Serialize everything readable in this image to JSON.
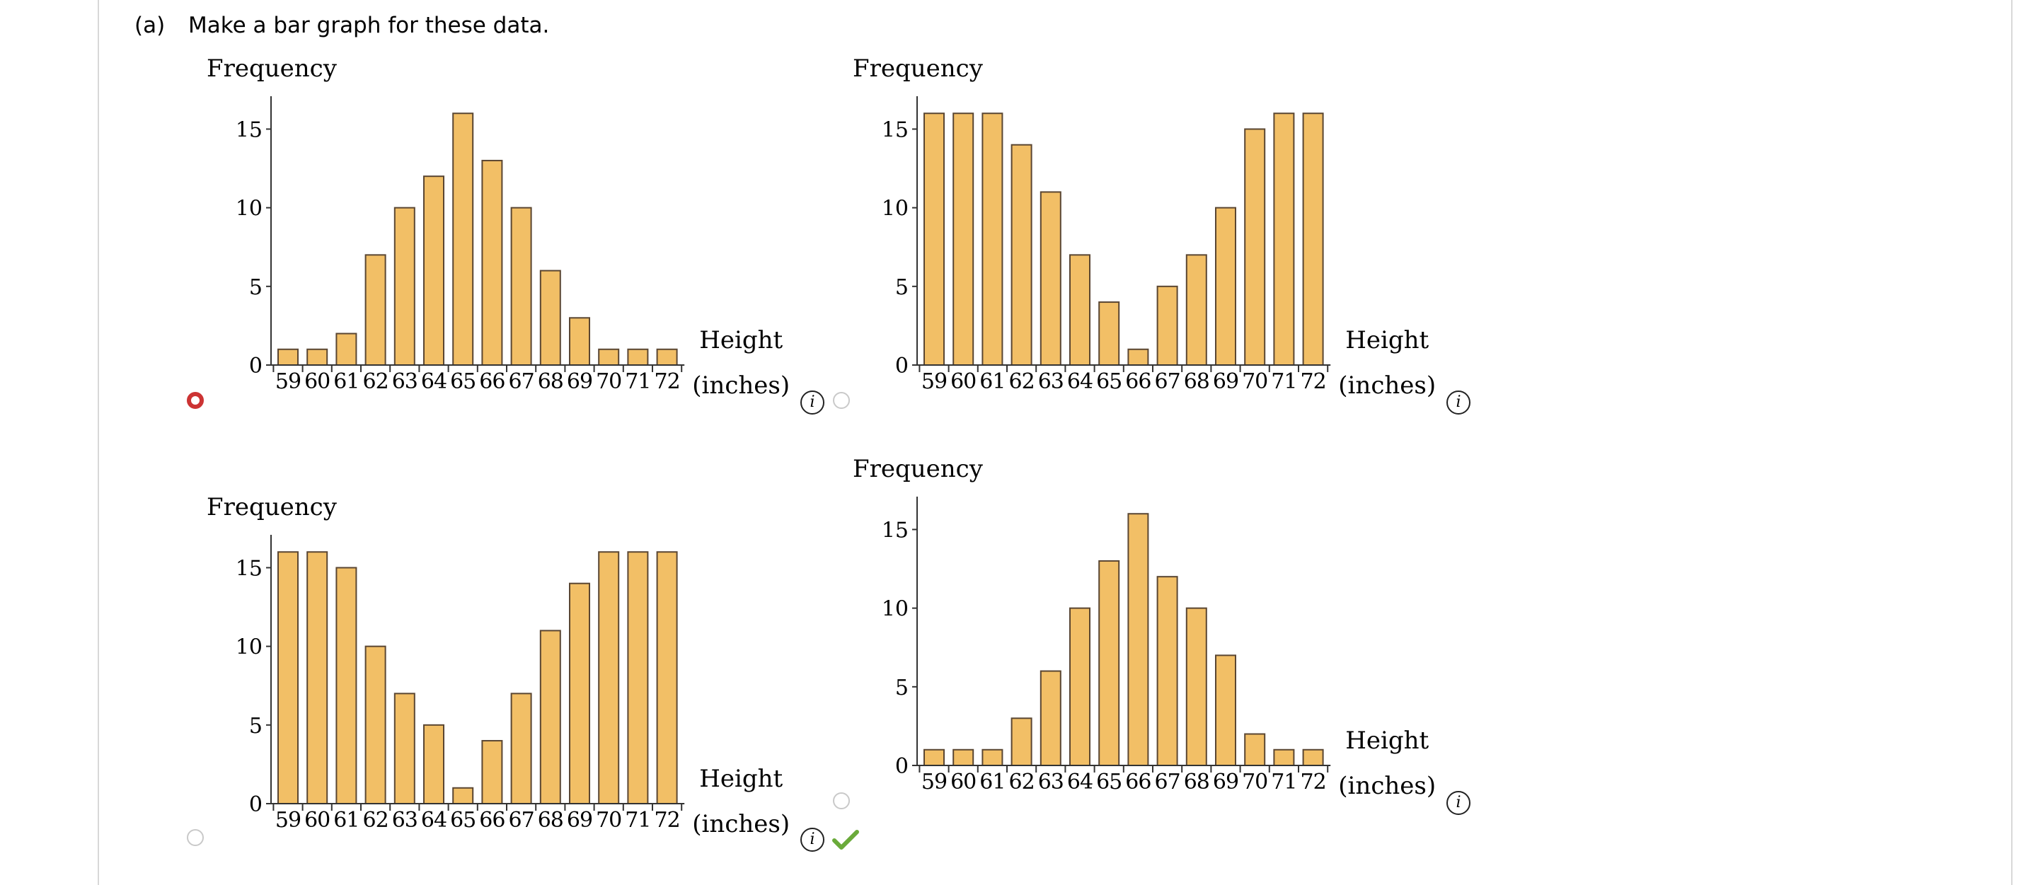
{
  "question": {
    "part": "(a)",
    "text": "Make a bar graph for these data."
  },
  "colors": {
    "bar_fill": "#f2bf66",
    "bar_stroke": "#5a4632",
    "selected_radio": "#cc3333",
    "check": "#6aaa3a"
  },
  "chart_data": [
    {
      "type": "bar",
      "categories": [
        "59",
        "60",
        "61",
        "62",
        "63",
        "64",
        "65",
        "66",
        "67",
        "68",
        "69",
        "70",
        "71",
        "72"
      ],
      "values": [
        1,
        1,
        2,
        7,
        10,
        12,
        16,
        13,
        10,
        6,
        3,
        1,
        1,
        1
      ],
      "ylabel": "Frequency",
      "xlabel_line1": "Height",
      "xlabel_line2": "(inches)",
      "yticks": [
        0,
        5,
        10,
        15
      ],
      "ylim": [
        0,
        17
      ]
    },
    {
      "type": "bar",
      "categories": [
        "59",
        "60",
        "61",
        "62",
        "63",
        "64",
        "65",
        "66",
        "67",
        "68",
        "69",
        "70",
        "71",
        "72"
      ],
      "values": [
        16,
        16,
        16,
        14,
        11,
        7,
        4,
        1,
        5,
        7,
        10,
        15,
        16,
        16
      ],
      "ylabel": "Frequency",
      "xlabel_line1": "Height",
      "xlabel_line2": "(inches)",
      "yticks": [
        0,
        5,
        10,
        15
      ],
      "ylim": [
        0,
        17
      ]
    },
    {
      "type": "bar",
      "categories": [
        "59",
        "60",
        "61",
        "62",
        "63",
        "64",
        "65",
        "66",
        "67",
        "68",
        "69",
        "70",
        "71",
        "72"
      ],
      "values": [
        16,
        16,
        15,
        10,
        7,
        5,
        1,
        4,
        7,
        11,
        14,
        16,
        16,
        16
      ],
      "ylabel": "Frequency",
      "xlabel_line1": "Height",
      "xlabel_line2": "(inches)",
      "yticks": [
        0,
        5,
        10,
        15
      ],
      "ylim": [
        0,
        17
      ]
    },
    {
      "type": "bar",
      "categories": [
        "59",
        "60",
        "61",
        "62",
        "63",
        "64",
        "65",
        "66",
        "67",
        "68",
        "69",
        "70",
        "71",
        "72"
      ],
      "values": [
        1,
        1,
        1,
        3,
        6,
        10,
        13,
        16,
        12,
        10,
        7,
        2,
        1,
        1
      ],
      "ylabel": "Frequency",
      "xlabel_line1": "Height",
      "xlabel_line2": "(inches)",
      "yticks": [
        0,
        5,
        10,
        15
      ],
      "ylim": [
        0,
        17
      ]
    }
  ],
  "options": [
    {
      "selected": true,
      "info": "i"
    },
    {
      "selected": false,
      "info": "i"
    },
    {
      "selected": false,
      "info": "i"
    },
    {
      "selected": false,
      "info": "i",
      "marked_correct": true
    }
  ]
}
